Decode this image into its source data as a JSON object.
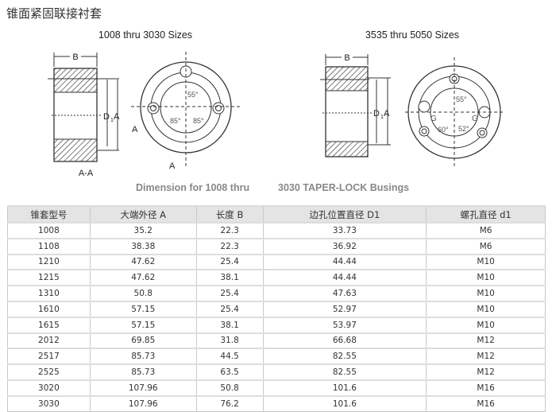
{
  "title": "锥面紧固联接衬套",
  "figure": {
    "left_heading": "1008 thru 3030 Sizes",
    "right_heading": "3535 thru 5050 Sizes",
    "caption_part1": "Dimension for 1008 thru",
    "caption_part2": "3030 TAPER-LOCK Busings",
    "labels": {
      "b": "B",
      "d1": "D",
      "d1_sub": "1",
      "a": "A",
      "section": "A-A",
      "angle_55": "55°",
      "angle_85": "85°",
      "angle_60": "60°",
      "angle_52": "52°",
      "g": "G"
    }
  },
  "table": {
    "headers": [
      "锥套型号",
      "大端外径 A",
      "长度 B",
      "边孔位置直径 D1",
      "螺孔直径 d1"
    ],
    "rows": [
      [
        "1008",
        "35.2",
        "22.3",
        "33.73",
        "M6"
      ],
      [
        "1108",
        "38.38",
        "22.3",
        "36.92",
        "M6"
      ],
      [
        "1210",
        "47.62",
        "25.4",
        "44.44",
        "M10"
      ],
      [
        "1215",
        "47.62",
        "38.1",
        "44.44",
        "M10"
      ],
      [
        "1310",
        "50.8",
        "25.4",
        "47.63",
        "M10"
      ],
      [
        "1610",
        "57.15",
        "25.4",
        "52.97",
        "M10"
      ],
      [
        "1615",
        "57.15",
        "38.1",
        "53.97",
        "M10"
      ],
      [
        "2012",
        "69.85",
        "31.8",
        "66.68",
        "M12"
      ],
      [
        "2517",
        "85.73",
        "44.5",
        "82.55",
        "M12"
      ],
      [
        "2525",
        "85.73",
        "63.5",
        "82.55",
        "M12"
      ],
      [
        "3020",
        "107.96",
        "50.8",
        "101.6",
        "M16"
      ],
      [
        "3030",
        "107.96",
        "76.2",
        "101.6",
        "M16"
      ]
    ]
  }
}
